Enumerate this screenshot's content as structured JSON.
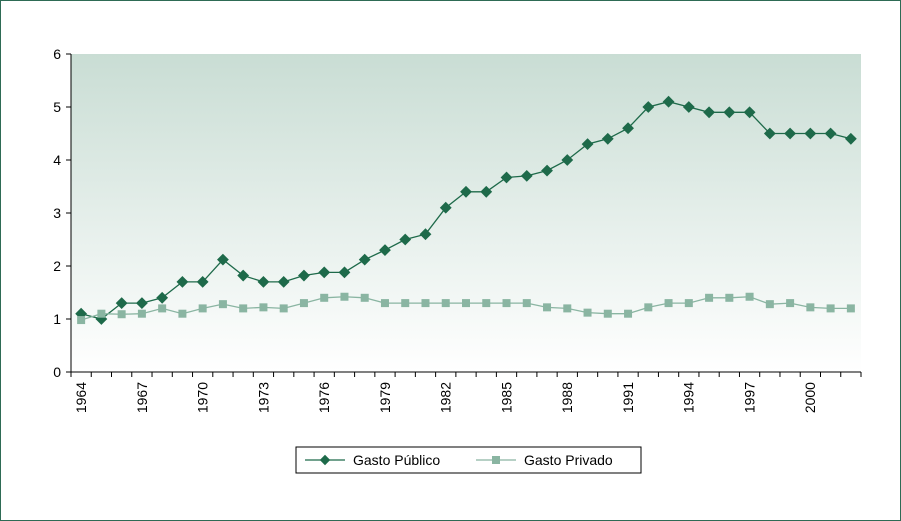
{
  "chart_data": {
    "type": "line",
    "title": "",
    "xlabel": "",
    "ylabel": "",
    "ylim": [
      0,
      6
    ],
    "yticks": [
      0,
      1,
      2,
      3,
      4,
      5,
      6
    ],
    "x": [
      1964,
      1965,
      1966,
      1967,
      1968,
      1969,
      1970,
      1971,
      1972,
      1973,
      1974,
      1975,
      1976,
      1977,
      1978,
      1979,
      1980,
      1981,
      1982,
      1983,
      1984,
      1985,
      1986,
      1987,
      1988,
      1989,
      1990,
      1991,
      1992,
      1993,
      1994,
      1995,
      1996,
      1997,
      1998,
      1999,
      2000,
      2001,
      2002
    ],
    "xtick_labels": [
      "1964",
      "1967",
      "1970",
      "1973",
      "1976",
      "1979",
      "1982",
      "1985",
      "1988",
      "1991",
      "1994",
      "1997",
      "2000"
    ],
    "grid": false,
    "legend_position": "bottom",
    "colors": {
      "gasto_publico": "#1e6a4a",
      "gasto_privado": "#8ab5a2",
      "plot_bg_top": "#c9ddd4",
      "plot_bg_bottom": "#ffffff",
      "frame": "#2e6b55"
    },
    "series": [
      {
        "name": "Gasto Público",
        "marker": "diamond",
        "values": [
          1.1,
          1.0,
          1.3,
          1.3,
          1.4,
          1.7,
          1.7,
          2.12,
          1.82,
          1.7,
          1.7,
          1.82,
          1.88,
          1.88,
          2.12,
          2.3,
          2.5,
          2.6,
          3.1,
          3.4,
          3.4,
          3.67,
          3.7,
          3.8,
          4.0,
          4.3,
          4.4,
          4.6,
          5.0,
          5.1,
          5.0,
          4.9,
          4.9,
          4.9,
          4.5,
          4.5,
          4.5,
          4.5,
          4.4
        ]
      },
      {
        "name": "Gasto Privado",
        "marker": "square",
        "values": [
          0.98,
          1.1,
          1.09,
          1.1,
          1.2,
          1.1,
          1.2,
          1.28,
          1.2,
          1.22,
          1.2,
          1.3,
          1.4,
          1.42,
          1.4,
          1.3,
          1.3,
          1.3,
          1.3,
          1.3,
          1.3,
          1.3,
          1.3,
          1.22,
          1.2,
          1.12,
          1.1,
          1.1,
          1.22,
          1.3,
          1.3,
          1.4,
          1.4,
          1.42,
          1.28,
          1.3,
          1.22,
          1.2,
          1.2
        ]
      }
    ]
  }
}
